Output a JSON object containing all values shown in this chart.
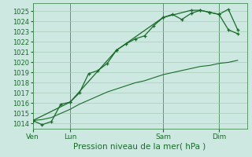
{
  "title": "Pression niveau de la mer( hPa )",
  "bg_color": "#cce8e0",
  "grid_color": "#aaccbb",
  "line_color": "#1a6b2a",
  "spine_color": "#4a8a5a",
  "ylim": [
    1013.5,
    1025.8
  ],
  "yticks": [
    1014,
    1015,
    1016,
    1017,
    1018,
    1019,
    1020,
    1021,
    1022,
    1023,
    1024,
    1025
  ],
  "tick_fontsize": 6,
  "xlabel_fontsize": 7.5,
  "day_labels": [
    "Ven",
    "Lun",
    "Sam",
    "Dim"
  ],
  "day_positions": [
    0,
    4,
    14,
    20
  ],
  "xlim": [
    0,
    23
  ],
  "line1_x": [
    0,
    1,
    2,
    3,
    4,
    5,
    6,
    7,
    8,
    9,
    10,
    11,
    12,
    13,
    14,
    15,
    16,
    17,
    18,
    19,
    20,
    21,
    22
  ],
  "line1_y": [
    1014.3,
    1013.9,
    1014.2,
    1015.9,
    1016.1,
    1017.0,
    1018.9,
    1019.2,
    1019.9,
    1021.2,
    1021.8,
    1022.3,
    1022.6,
    1023.6,
    1024.4,
    1024.7,
    1024.2,
    1024.8,
    1025.1,
    1024.9,
    1024.7,
    1025.2,
    1023.2
  ],
  "line1_marker_x": [
    0,
    1,
    2,
    3,
    4,
    5,
    6,
    7,
    8,
    9,
    10,
    11,
    12,
    13,
    14,
    15,
    16,
    17,
    18,
    19,
    20,
    21,
    22
  ],
  "line2_x": [
    0,
    1,
    2,
    3,
    4,
    5,
    6,
    7,
    8,
    9,
    10,
    11,
    12,
    13,
    14,
    15,
    16,
    17,
    18,
    19,
    20,
    21,
    22
  ],
  "line2_y": [
    1014.3,
    1014.4,
    1014.6,
    1015.0,
    1015.4,
    1015.9,
    1016.3,
    1016.7,
    1017.1,
    1017.4,
    1017.7,
    1018.0,
    1018.2,
    1018.5,
    1018.8,
    1019.0,
    1019.2,
    1019.4,
    1019.6,
    1019.7,
    1019.9,
    1020.0,
    1020.2
  ],
  "line3_x": [
    0,
    4,
    9,
    14,
    17,
    18,
    19,
    20,
    21,
    22
  ],
  "line3_y": [
    1014.3,
    1016.1,
    1021.2,
    1024.4,
    1025.1,
    1025.1,
    1024.9,
    1024.7,
    1023.2,
    1022.8
  ],
  "vline_positions": [
    0,
    4,
    14,
    20
  ]
}
